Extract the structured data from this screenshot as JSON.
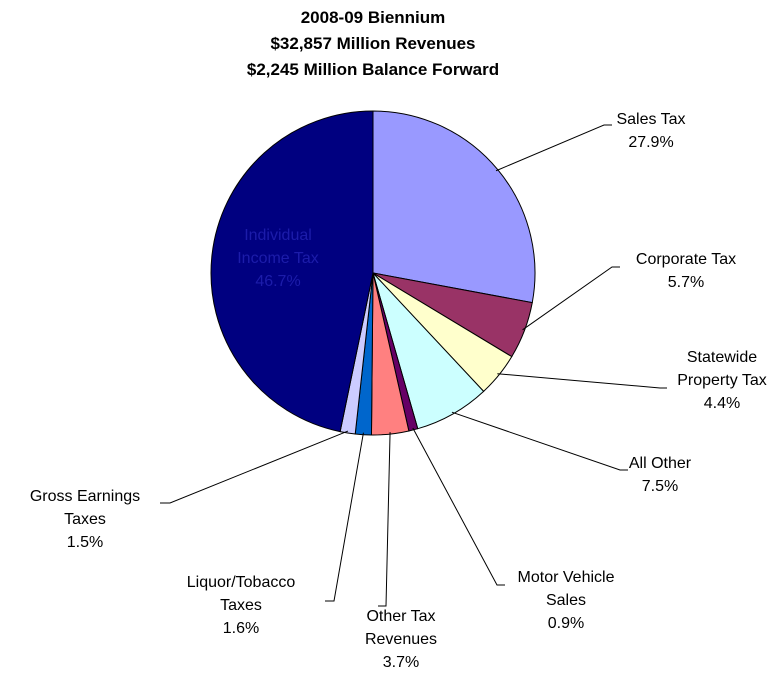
{
  "chart_data": {
    "type": "pie",
    "title": "2008-09 Biennium",
    "subtitle": [
      "$32,857 Million Revenues",
      "$2,245 Million Balance Forward"
    ],
    "categories": [
      "Sales Tax",
      "Corporate Tax",
      "Statewide Property Tax",
      "All Other",
      "Motor Vehicle Sales",
      "Other Tax Revenues",
      "Liquor/Tobacco Taxes",
      "Gross Earnings Taxes",
      "Individual Income Tax"
    ],
    "values": [
      27.9,
      5.7,
      4.4,
      7.5,
      0.9,
      3.7,
      1.6,
      1.5,
      46.7
    ],
    "value_labels": [
      "27.9%",
      "5.7%",
      "4.4%",
      "7.5%",
      "0.9%",
      "3.7%",
      "1.6%",
      "1.5%",
      "46.7%"
    ],
    "colors": [
      "#9999ff",
      "#993366",
      "#ffffcc",
      "#ccffff",
      "#660066",
      "#ff8080",
      "#0066cc",
      "#ccccff",
      "#000080"
    ]
  }
}
